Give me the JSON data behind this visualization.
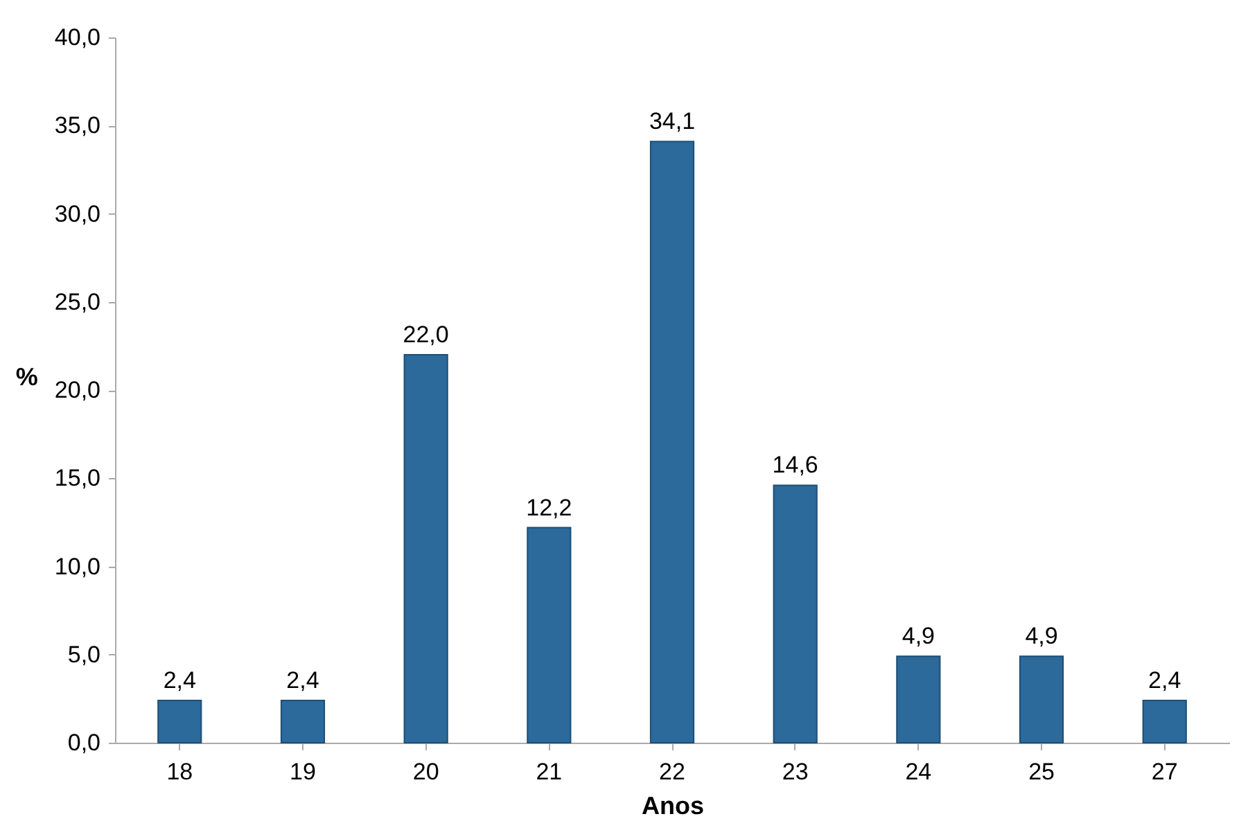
{
  "chart_data": {
    "type": "bar",
    "xlabel": "Anos",
    "ylabel": "%",
    "categories": [
      "18",
      "19",
      "20",
      "21",
      "22",
      "23",
      "24",
      "25",
      "27"
    ],
    "values": [
      2.4,
      2.4,
      22.0,
      12.2,
      34.1,
      14.6,
      4.9,
      4.9,
      2.4
    ],
    "value_labels": [
      "2,4",
      "2,4",
      "22,0",
      "12,2",
      "34,1",
      "14,6",
      "4,9",
      "4,9",
      "2,4"
    ],
    "color": "#2b6a9b",
    "ylim": [
      0,
      40
    ],
    "yticks": [
      {
        "value": 0,
        "label": "0,0"
      },
      {
        "value": 5,
        "label": "5,0"
      },
      {
        "value": 10,
        "label": "10,0"
      },
      {
        "value": 15,
        "label": "15,0"
      },
      {
        "value": 20,
        "label": "20,0"
      },
      {
        "value": 25,
        "label": "25,0"
      },
      {
        "value": 30,
        "label": "30,0"
      },
      {
        "value": 35,
        "label": "35,0"
      },
      {
        "value": 40,
        "label": "40,0"
      }
    ],
    "grid": false
  }
}
